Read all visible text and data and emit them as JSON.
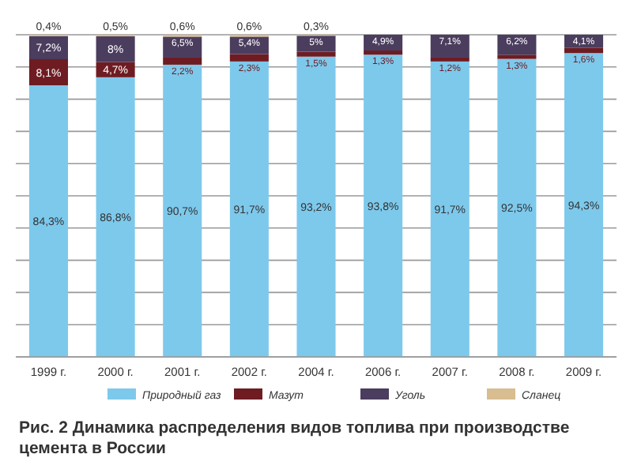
{
  "chart_data": {
    "type": "bar",
    "stacked": true,
    "title": "Рис. 2   Динамика распределения видов топлива при производстве цемента в России",
    "categories": [
      "1999 г.",
      "2000 г.",
      "2001 г.",
      "2002 г.",
      "2004 г.",
      "2006 г.",
      "2007 г.",
      "2008 г.",
      "2009 г."
    ],
    "series": [
      {
        "name": "Природный газ",
        "color": "#7dc9ec",
        "values": [
          84.3,
          86.8,
          90.7,
          91.7,
          93.2,
          93.8,
          91.7,
          92.5,
          94.3
        ],
        "value_labels": [
          "84,3%",
          "86,8%",
          "90,7%",
          "91,7%",
          "93,2%",
          "93,8%",
          "91,7%",
          "92,5%",
          "94,3%"
        ]
      },
      {
        "name": "Мазут",
        "color": "#6e1c22",
        "values": [
          8.1,
          4.7,
          2.2,
          2.3,
          1.5,
          1.3,
          1.2,
          1.3,
          1.6
        ],
        "value_labels": [
          "8,1%",
          "4,7%",
          "2,2%",
          "2,3%",
          "1,5%",
          "1,3%",
          "1,2%",
          "1,3%",
          "1,6%"
        ]
      },
      {
        "name": "Уголь",
        "color": "#4b3d5e",
        "values": [
          7.2,
          8,
          6.5,
          5.4,
          5,
          4.9,
          7.1,
          6.2,
          4.1
        ],
        "value_labels": [
          "7,2%",
          "8%",
          "6,5%",
          "5,4%",
          "5%",
          "4,9%",
          "7,1%",
          "6,2%",
          "4,1%"
        ]
      },
      {
        "name": "Сланец",
        "color": "#d8bd91",
        "values": [
          0.4,
          0.5,
          0.6,
          0.6,
          0.3,
          null,
          null,
          null,
          null
        ],
        "value_labels": [
          "0,4%",
          "0,5%",
          "0,6%",
          "0,6%",
          "0,3%",
          null,
          null,
          null,
          null
        ]
      }
    ],
    "ylim": [
      0,
      100
    ],
    "yticks": [
      {
        "value": 0,
        "label": null
      },
      {
        "value": 10,
        "label": null
      },
      {
        "value": 20,
        "label": null
      },
      {
        "value": 30,
        "label": null
      },
      {
        "value": 40,
        "label": null
      },
      {
        "value": 50,
        "label": null
      },
      {
        "value": 60,
        "label": null
      },
      {
        "value": 70,
        "label": null
      },
      {
        "value": 80,
        "label": null
      },
      {
        "value": 90,
        "label": null
      },
      {
        "value": 100,
        "label": null
      }
    ],
    "tick_labels": "x",
    "grid": "y",
    "legend": "bottom"
  }
}
